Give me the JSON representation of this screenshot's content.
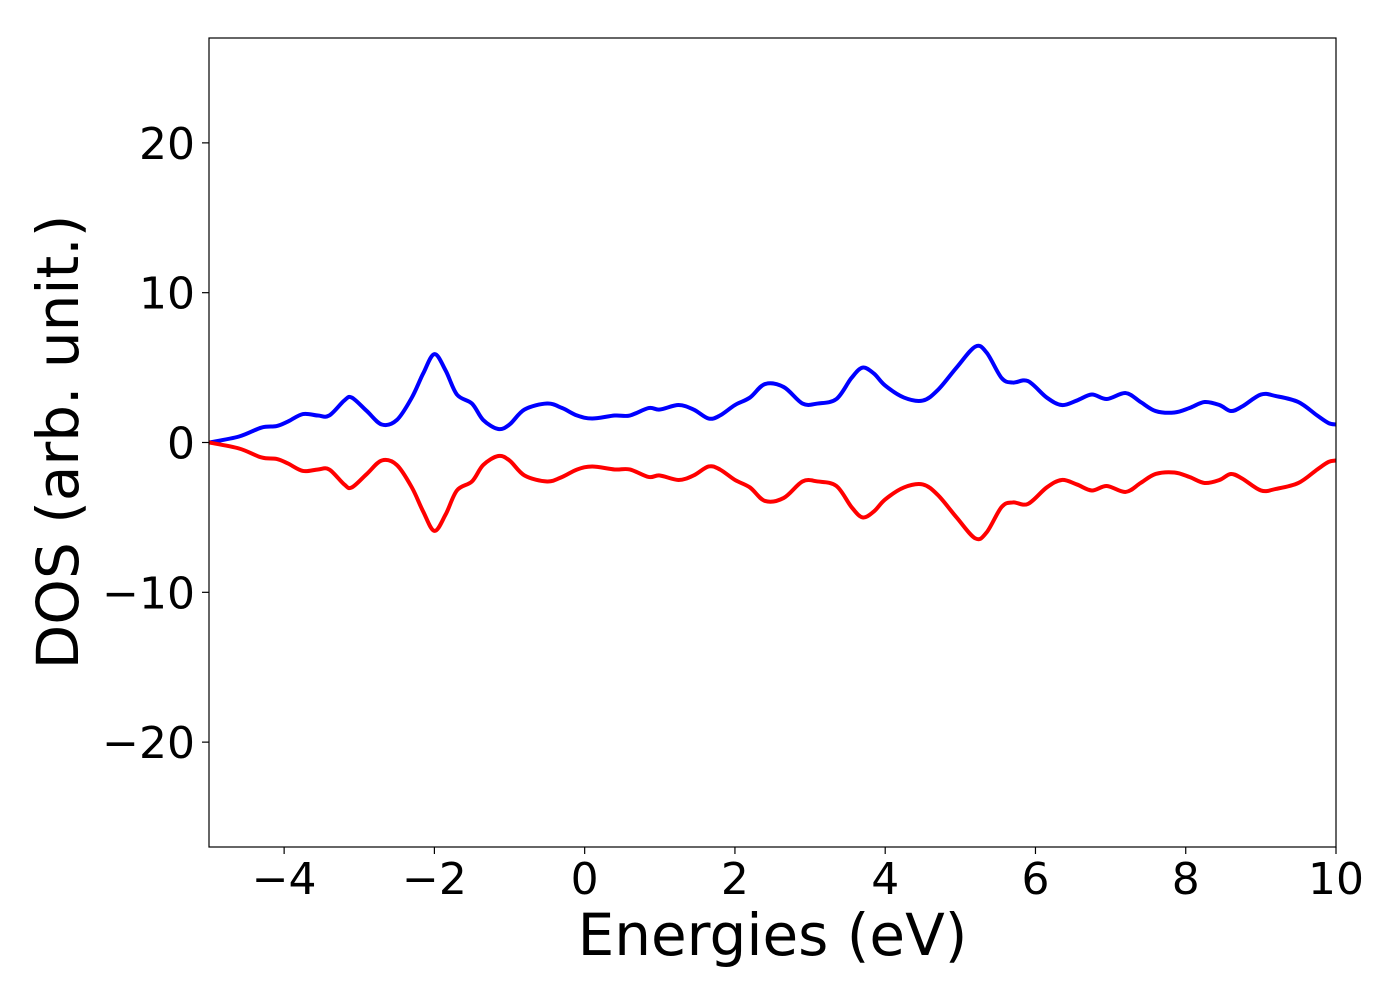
{
  "chart_data": {
    "type": "line",
    "title": "",
    "xlabel": "Energies (eV)",
    "ylabel": "DOS (arb. unit.)",
    "xlim": [
      -5,
      10
    ],
    "ylim": [
      -27,
      27
    ],
    "xticks": [
      -4,
      -2,
      0,
      2,
      4,
      6,
      8,
      10
    ],
    "yticks": [
      -20,
      -10,
      0,
      10,
      20
    ],
    "xtick_labels": [
      "−4",
      "−2",
      "0",
      "2",
      "4",
      "6",
      "8",
      "10"
    ],
    "ytick_labels": [
      "−20",
      "−10",
      "0",
      "10",
      "20"
    ],
    "grid": false,
    "legend": "none",
    "series": [
      {
        "color": "#0000ff",
        "points": [
          [
            -5.0,
            0.0
          ],
          [
            -4.6,
            0.4
          ],
          [
            -4.3,
            1.0
          ],
          [
            -4.1,
            1.1
          ],
          [
            -3.95,
            1.4
          ],
          [
            -3.75,
            1.9
          ],
          [
            -3.55,
            1.8
          ],
          [
            -3.4,
            1.8
          ],
          [
            -3.2,
            2.8
          ],
          [
            -3.1,
            3.0
          ],
          [
            -2.9,
            2.1
          ],
          [
            -2.7,
            1.2
          ],
          [
            -2.5,
            1.5
          ],
          [
            -2.3,
            3.0
          ],
          [
            -2.15,
            4.6
          ],
          [
            -2.0,
            5.9
          ],
          [
            -1.85,
            4.8
          ],
          [
            -1.7,
            3.2
          ],
          [
            -1.5,
            2.6
          ],
          [
            -1.35,
            1.5
          ],
          [
            -1.15,
            0.9
          ],
          [
            -1.0,
            1.2
          ],
          [
            -0.8,
            2.2
          ],
          [
            -0.5,
            2.6
          ],
          [
            -0.3,
            2.3
          ],
          [
            -0.1,
            1.8
          ],
          [
            0.1,
            1.6
          ],
          [
            0.4,
            1.8
          ],
          [
            0.6,
            1.8
          ],
          [
            0.85,
            2.3
          ],
          [
            1.0,
            2.2
          ],
          [
            1.25,
            2.5
          ],
          [
            1.45,
            2.2
          ],
          [
            1.65,
            1.6
          ],
          [
            1.8,
            1.8
          ],
          [
            2.0,
            2.5
          ],
          [
            2.2,
            3.0
          ],
          [
            2.4,
            3.9
          ],
          [
            2.65,
            3.7
          ],
          [
            2.9,
            2.6
          ],
          [
            3.1,
            2.6
          ],
          [
            3.35,
            2.9
          ],
          [
            3.55,
            4.3
          ],
          [
            3.7,
            5.0
          ],
          [
            3.85,
            4.6
          ],
          [
            4.0,
            3.8
          ],
          [
            4.25,
            3.0
          ],
          [
            4.5,
            2.8
          ],
          [
            4.7,
            3.5
          ],
          [
            4.95,
            5.0
          ],
          [
            5.2,
            6.4
          ],
          [
            5.35,
            6.0
          ],
          [
            5.55,
            4.3
          ],
          [
            5.7,
            4.0
          ],
          [
            5.9,
            4.1
          ],
          [
            6.15,
            3.0
          ],
          [
            6.35,
            2.5
          ],
          [
            6.55,
            2.8
          ],
          [
            6.75,
            3.2
          ],
          [
            6.95,
            2.9
          ],
          [
            7.2,
            3.3
          ],
          [
            7.4,
            2.7
          ],
          [
            7.6,
            2.1
          ],
          [
            7.85,
            2.0
          ],
          [
            8.05,
            2.3
          ],
          [
            8.25,
            2.7
          ],
          [
            8.45,
            2.5
          ],
          [
            8.6,
            2.1
          ],
          [
            8.75,
            2.4
          ],
          [
            9.0,
            3.2
          ],
          [
            9.2,
            3.1
          ],
          [
            9.5,
            2.7
          ],
          [
            9.75,
            1.8
          ],
          [
            9.9,
            1.3
          ],
          [
            10.0,
            1.2
          ]
        ]
      },
      {
        "color": "#ff0000",
        "points": [
          [
            -5.0,
            0.0
          ],
          [
            -4.6,
            -0.4
          ],
          [
            -4.3,
            -1.0
          ],
          [
            -4.1,
            -1.1
          ],
          [
            -3.95,
            -1.4
          ],
          [
            -3.75,
            -1.9
          ],
          [
            -3.55,
            -1.8
          ],
          [
            -3.4,
            -1.8
          ],
          [
            -3.2,
            -2.8
          ],
          [
            -3.1,
            -3.0
          ],
          [
            -2.9,
            -2.1
          ],
          [
            -2.7,
            -1.2
          ],
          [
            -2.5,
            -1.5
          ],
          [
            -2.3,
            -3.0
          ],
          [
            -2.15,
            -4.6
          ],
          [
            -2.0,
            -5.9
          ],
          [
            -1.85,
            -4.8
          ],
          [
            -1.7,
            -3.2
          ],
          [
            -1.5,
            -2.6
          ],
          [
            -1.35,
            -1.5
          ],
          [
            -1.15,
            -0.9
          ],
          [
            -1.0,
            -1.2
          ],
          [
            -0.8,
            -2.2
          ],
          [
            -0.5,
            -2.6
          ],
          [
            -0.3,
            -2.3
          ],
          [
            -0.1,
            -1.8
          ],
          [
            0.1,
            -1.6
          ],
          [
            0.4,
            -1.8
          ],
          [
            0.6,
            -1.8
          ],
          [
            0.85,
            -2.3
          ],
          [
            1.0,
            -2.2
          ],
          [
            1.25,
            -2.5
          ],
          [
            1.45,
            -2.2
          ],
          [
            1.65,
            -1.6
          ],
          [
            1.8,
            -1.8
          ],
          [
            2.0,
            -2.5
          ],
          [
            2.2,
            -3.0
          ],
          [
            2.4,
            -3.9
          ],
          [
            2.65,
            -3.7
          ],
          [
            2.9,
            -2.6
          ],
          [
            3.1,
            -2.6
          ],
          [
            3.35,
            -2.9
          ],
          [
            3.55,
            -4.3
          ],
          [
            3.7,
            -5.0
          ],
          [
            3.85,
            -4.6
          ],
          [
            4.0,
            -3.8
          ],
          [
            4.25,
            -3.0
          ],
          [
            4.5,
            -2.8
          ],
          [
            4.7,
            -3.5
          ],
          [
            4.95,
            -5.0
          ],
          [
            5.2,
            -6.4
          ],
          [
            5.35,
            -6.0
          ],
          [
            5.55,
            -4.3
          ],
          [
            5.7,
            -4.0
          ],
          [
            5.9,
            -4.1
          ],
          [
            6.15,
            -3.0
          ],
          [
            6.35,
            -2.5
          ],
          [
            6.55,
            -2.8
          ],
          [
            6.75,
            -3.2
          ],
          [
            6.95,
            -2.9
          ],
          [
            7.2,
            -3.3
          ],
          [
            7.4,
            -2.7
          ],
          [
            7.6,
            -2.1
          ],
          [
            7.85,
            -2.0
          ],
          [
            8.05,
            -2.3
          ],
          [
            8.25,
            -2.7
          ],
          [
            8.45,
            -2.5
          ],
          [
            8.6,
            -2.1
          ],
          [
            8.75,
            -2.4
          ],
          [
            9.0,
            -3.2
          ],
          [
            9.2,
            -3.1
          ],
          [
            9.5,
            -2.7
          ],
          [
            9.75,
            -1.8
          ],
          [
            9.9,
            -1.3
          ],
          [
            10.0,
            -1.2
          ]
        ]
      }
    ]
  }
}
